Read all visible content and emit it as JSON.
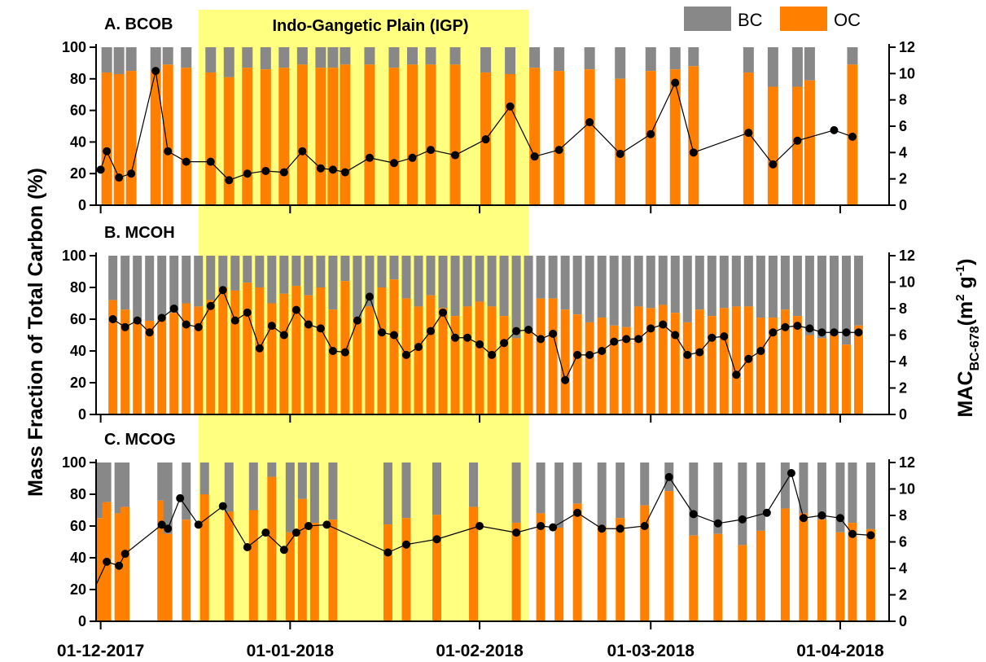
{
  "figure": {
    "band_label": "Indo-Gangetic Plain (IGP)",
    "y_left_title": "Mass Fraction of Total Carbon (%)",
    "y_right_title_main": "MAC",
    "y_right_title_sub": "BC-678",
    "y_right_title_units_pre": "(m",
    "y_right_title_units_exp1": "2",
    "y_right_title_units_mid": " g",
    "y_right_title_units_exp2": "-1",
    "y_right_title_units_post": ")",
    "legend": [
      {
        "label": "BC",
        "color": "#888888"
      },
      {
        "label": "OC",
        "color": "#FF8000"
      }
    ],
    "colors": {
      "bc": "#888888",
      "oc": "#FF8000",
      "band": "#FFFF80",
      "mac": "#000000"
    }
  },
  "chart_data": [
    {
      "type": "bar",
      "panel": "A",
      "title": "A. BCOB",
      "x_axis_type": "date",
      "xticks": [
        "01-12-2017",
        "01-01-2018",
        "01-02-2018",
        "01-03-2018",
        "01-04-2018"
      ],
      "ylim_left": [
        0,
        100
      ],
      "yticks_left": [
        0,
        20,
        40,
        60,
        80,
        100
      ],
      "ylim_right": [
        0,
        12
      ],
      "yticks_right": [
        0,
        2,
        4,
        6,
        8,
        10,
        12
      ],
      "highlight_range": [
        "2017-12-17",
        "2018-02-09"
      ],
      "stack_total": 100,
      "dates": [
        "2017-12-02",
        "2017-12-04",
        "2017-12-06",
        "2017-12-10",
        "2017-12-12",
        "2017-12-15",
        "2017-12-19",
        "2017-12-22",
        "2017-12-25",
        "2017-12-28",
        "2017-12-31",
        "2018-01-03",
        "2018-01-06",
        "2018-01-08",
        "2018-01-10",
        "2018-01-14",
        "2018-01-18",
        "2018-01-21",
        "2018-01-24",
        "2018-01-28",
        "2018-02-02",
        "2018-02-06",
        "2018-02-10",
        "2018-02-14",
        "2018-02-19",
        "2018-02-24",
        "2018-03-01",
        "2018-03-05",
        "2018-03-08",
        "2018-03-17",
        "2018-03-21",
        "2018-03-25",
        "2018-03-27",
        "2018-04-03"
      ],
      "oc": [
        84,
        83,
        85,
        85,
        89,
        87,
        84,
        81,
        87,
        86,
        87,
        89,
        87,
        87,
        89,
        89,
        87,
        89,
        89,
        89,
        84,
        83,
        87,
        85,
        86,
        80,
        85,
        86,
        88,
        84,
        75,
        75,
        79,
        89
      ],
      "bc": [
        16,
        17,
        15,
        15,
        11,
        13,
        16,
        19,
        13,
        14,
        13,
        11,
        13,
        13,
        11,
        11,
        13,
        11,
        11,
        11,
        16,
        17,
        13,
        15,
        14,
        20,
        15,
        14,
        12,
        16,
        25,
        25,
        21,
        11
      ],
      "mac": {
        "dates": [
          "2017-12-01",
          "2017-12-02",
          "2017-12-04",
          "2017-12-06",
          "2017-12-10",
          "2017-12-12",
          "2017-12-15",
          "2017-12-19",
          "2017-12-22",
          "2017-12-25",
          "2017-12-28",
          "2017-12-31",
          "2018-01-03",
          "2018-01-06",
          "2018-01-08",
          "2018-01-10",
          "2018-01-14",
          "2018-01-18",
          "2018-01-21",
          "2018-01-24",
          "2018-01-28",
          "2018-02-02",
          "2018-02-06",
          "2018-02-10",
          "2018-02-14",
          "2018-02-19",
          "2018-02-24",
          "2018-03-01",
          "2018-03-05",
          "2018-03-08",
          "2018-03-17",
          "2018-03-21",
          "2018-03-25",
          "2018-03-31",
          "2018-04-03"
        ],
        "values": [
          2.7,
          4.1,
          2.1,
          2.4,
          10.2,
          4.1,
          3.3,
          3.3,
          1.9,
          2.4,
          2.6,
          2.5,
          4.1,
          2.8,
          2.7,
          2.5,
          3.6,
          3.2,
          3.6,
          4.2,
          3.8,
          5.0,
          7.5,
          3.7,
          4.2,
          6.3,
          3.9,
          5.4,
          9.3,
          4.0,
          5.5,
          3.1,
          4.9,
          5.7,
          5.2
        ]
      }
    },
    {
      "type": "bar",
      "panel": "B",
      "title": "B. MCOH",
      "x_axis_type": "date",
      "xticks": [
        "01-12-2017",
        "01-01-2018",
        "01-02-2018",
        "01-03-2018",
        "01-04-2018"
      ],
      "ylim_left": [
        0,
        100
      ],
      "yticks_left": [
        0,
        20,
        40,
        60,
        80,
        100
      ],
      "ylim_right": [
        0,
        12
      ],
      "yticks_right": [
        0,
        2,
        4,
        6,
        8,
        10,
        12
      ],
      "highlight_range": [
        "2017-12-17",
        "2018-02-09"
      ],
      "stack_total": 100,
      "dates": [
        "2017-12-03",
        "2017-12-05",
        "2017-12-07",
        "2017-12-09",
        "2017-12-11",
        "2017-12-13",
        "2017-12-15",
        "2017-12-17",
        "2017-12-19",
        "2017-12-21",
        "2017-12-23",
        "2017-12-25",
        "2017-12-27",
        "2017-12-29",
        "2017-12-31",
        "2018-01-02",
        "2018-01-04",
        "2018-01-06",
        "2018-01-08",
        "2018-01-10",
        "2018-01-12",
        "2018-01-14",
        "2018-01-16",
        "2018-01-18",
        "2018-01-20",
        "2018-01-22",
        "2018-01-24",
        "2018-01-26",
        "2018-01-28",
        "2018-01-30",
        "2018-02-01",
        "2018-02-03",
        "2018-02-05",
        "2018-02-07",
        "2018-02-09",
        "2018-02-11",
        "2018-02-13",
        "2018-02-15",
        "2018-02-17",
        "2018-02-19",
        "2018-02-21",
        "2018-02-23",
        "2018-02-25",
        "2018-02-27",
        "2018-03-01",
        "2018-03-03",
        "2018-03-05",
        "2018-03-07",
        "2018-03-09",
        "2018-03-11",
        "2018-03-13",
        "2018-03-15",
        "2018-03-17",
        "2018-03-19",
        "2018-03-21",
        "2018-03-23",
        "2018-03-25",
        "2018-03-27",
        "2018-03-29",
        "2018-03-31",
        "2018-04-02",
        "2018-04-04"
      ],
      "oc": [
        72,
        66,
        60,
        59,
        62,
        64,
        70,
        68,
        72,
        80,
        78,
        83,
        80,
        70,
        76,
        81,
        75,
        80,
        66,
        84,
        61,
        68,
        80,
        85,
        73,
        68,
        75,
        67,
        62,
        68,
        71,
        68,
        62,
        48,
        52,
        73,
        73,
        66,
        63,
        58,
        61,
        56,
        55,
        68,
        67,
        69,
        64,
        58,
        66,
        62,
        67,
        68,
        68,
        61,
        61,
        66,
        62,
        50,
        48,
        50,
        44,
        56
      ],
      "bc": [
        28,
        34,
        40,
        41,
        38,
        36,
        30,
        32,
        28,
        20,
        22,
        17,
        20,
        30,
        24,
        19,
        25,
        20,
        34,
        16,
        39,
        32,
        20,
        15,
        27,
        32,
        25,
        33,
        38,
        32,
        29,
        32,
        38,
        52,
        48,
        27,
        27,
        34,
        37,
        42,
        39,
        44,
        45,
        32,
        33,
        31,
        36,
        42,
        34,
        38,
        33,
        32,
        32,
        39,
        39,
        34,
        38,
        50,
        52,
        50,
        56,
        44
      ],
      "mac": {
        "dates": [
          "2017-12-03",
          "2017-12-05",
          "2017-12-07",
          "2017-12-09",
          "2017-12-11",
          "2017-12-13",
          "2017-12-15",
          "2017-12-17",
          "2017-12-19",
          "2017-12-21",
          "2017-12-23",
          "2017-12-25",
          "2017-12-27",
          "2017-12-29",
          "2017-12-31",
          "2018-01-02",
          "2018-01-04",
          "2018-01-06",
          "2018-01-08",
          "2018-01-10",
          "2018-01-12",
          "2018-01-14",
          "2018-01-16",
          "2018-01-18",
          "2018-01-20",
          "2018-01-22",
          "2018-01-24",
          "2018-01-26",
          "2018-01-28",
          "2018-01-30",
          "2018-02-01",
          "2018-02-03",
          "2018-02-05",
          "2018-02-07",
          "2018-02-09",
          "2018-02-11",
          "2018-02-13",
          "2018-02-15",
          "2018-02-17",
          "2018-02-19",
          "2018-02-21",
          "2018-02-23",
          "2018-02-25",
          "2018-02-27",
          "2018-03-01",
          "2018-03-03",
          "2018-03-05",
          "2018-03-07",
          "2018-03-09",
          "2018-03-11",
          "2018-03-13",
          "2018-03-15",
          "2018-03-17",
          "2018-03-19",
          "2018-03-21",
          "2018-03-23",
          "2018-03-25",
          "2018-03-27",
          "2018-03-29",
          "2018-03-31",
          "2018-04-02",
          "2018-04-04"
        ],
        "values": [
          7.2,
          6.6,
          7.1,
          6.2,
          7.3,
          8.0,
          6.8,
          6.6,
          8.2,
          9.4,
          7.1,
          7.7,
          5.0,
          6.7,
          6.0,
          7.9,
          6.8,
          6.5,
          4.8,
          4.7,
          7.1,
          8.9,
          6.2,
          6.0,
          4.5,
          5.1,
          6.3,
          7.7,
          5.8,
          5.8,
          5.3,
          4.5,
          5.4,
          6.3,
          6.4,
          5.7,
          6.1,
          2.6,
          4.5,
          4.5,
          4.8,
          5.5,
          5.7,
          5.7,
          6.5,
          6.8,
          6.0,
          4.5,
          4.7,
          5.8,
          5.9,
          3.0,
          4.2,
          4.8,
          6.2,
          6.6,
          6.7,
          6.5,
          6.2,
          6.2,
          6.2,
          6.2
        ]
      }
    },
    {
      "type": "bar",
      "panel": "C",
      "title": "C. MCOG",
      "x_axis_type": "date",
      "xticks": [
        "01-12-2017",
        "01-01-2018",
        "01-02-2018",
        "01-03-2018",
        "01-04-2018"
      ],
      "ylim_left": [
        0,
        100
      ],
      "yticks_left": [
        0,
        20,
        40,
        60,
        80,
        100
      ],
      "ylim_right": [
        0,
        12
      ],
      "yticks_right": [
        0,
        2,
        4,
        6,
        8,
        10,
        12
      ],
      "highlight_range": [
        "2017-12-17",
        "2018-02-09"
      ],
      "stack_total": 100,
      "dates": [
        "2017-12-01",
        "2017-12-02",
        "2017-12-04",
        "2017-12-05",
        "2017-12-11",
        "2017-12-12",
        "2017-12-15",
        "2017-12-18",
        "2017-12-22",
        "2017-12-26",
        "2017-12-29",
        "2018-01-01",
        "2018-01-03",
        "2018-01-05",
        "2018-01-08",
        "2018-01-17",
        "2018-01-20",
        "2018-01-25",
        "2018-01-31",
        "2018-02-07",
        "2018-02-11",
        "2018-02-14",
        "2018-02-17",
        "2018-02-21",
        "2018-02-24",
        "2018-02-28",
        "2018-03-04",
        "2018-03-08",
        "2018-03-12",
        "2018-03-16",
        "2018-03-19",
        "2018-03-23",
        "2018-03-26",
        "2018-03-29",
        "2018-04-01",
        "2018-04-03",
        "2018-04-06"
      ],
      "oc": [
        65,
        75,
        68,
        72,
        76,
        55,
        64,
        80,
        69,
        70,
        91,
        56,
        77,
        62,
        64,
        61,
        65,
        67,
        72,
        62,
        68,
        59,
        74,
        60,
        65,
        73,
        82,
        54,
        55,
        48,
        57,
        71,
        68,
        64,
        56,
        62,
        58
      ],
      "bc": [
        35,
        25,
        32,
        28,
        24,
        45,
        36,
        20,
        31,
        30,
        9,
        44,
        23,
        38,
        36,
        39,
        35,
        33,
        28,
        38,
        32,
        41,
        26,
        40,
        35,
        27,
        18,
        46,
        45,
        52,
        43,
        29,
        32,
        36,
        44,
        38,
        42
      ],
      "mac": {
        "dates": [
          "2017-11-30",
          "2017-12-02",
          "2017-12-04",
          "2017-12-05",
          "2017-12-11",
          "2017-12-12",
          "2017-12-14",
          "2017-12-17",
          "2017-12-21",
          "2017-12-25",
          "2017-12-28",
          "2017-12-31",
          "2018-01-02",
          "2018-01-04",
          "2018-01-07",
          "2018-01-17",
          "2018-01-20",
          "2018-01-25",
          "2018-02-01",
          "2018-02-07",
          "2018-02-11",
          "2018-02-13",
          "2018-02-17",
          "2018-02-21",
          "2018-02-24",
          "2018-02-28",
          "2018-03-04",
          "2018-03-08",
          "2018-03-12",
          "2018-03-16",
          "2018-03-20",
          "2018-03-24",
          "2018-03-26",
          "2018-03-29",
          "2018-04-01",
          "2018-04-03",
          "2018-04-06"
        ],
        "values": [
          2.5,
          4.5,
          4.2,
          5.1,
          7.3,
          7.0,
          9.3,
          7.3,
          8.7,
          5.6,
          6.7,
          5.4,
          6.7,
          7.2,
          7.3,
          5.2,
          5.8,
          6.2,
          7.2,
          6.7,
          7.2,
          7.1,
          8.2,
          7.0,
          7.0,
          7.2,
          10.9,
          8.1,
          7.4,
          7.7,
          8.2,
          11.2,
          7.8,
          8.0,
          7.8,
          6.6,
          6.5
        ]
      }
    }
  ]
}
